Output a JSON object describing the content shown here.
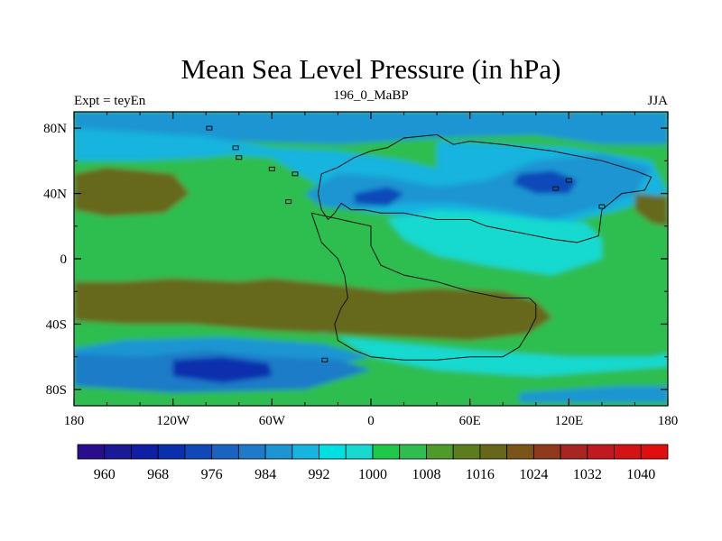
{
  "chart_data": {
    "type": "contour-map",
    "title": "Mean Sea Level Pressure (in hPa)",
    "subtitle_left": "Expt = teyEn",
    "subtitle_center": "196_0_MaBP",
    "subtitle_right": "JJA",
    "x_axis": {
      "range": [
        -180,
        180
      ],
      "ticks": [
        {
          "value": -180,
          "label": "180"
        },
        {
          "value": -120,
          "label": "120W"
        },
        {
          "value": -60,
          "label": "60W"
        },
        {
          "value": 0,
          "label": "0"
        },
        {
          "value": 60,
          "label": "60E"
        },
        {
          "value": 120,
          "label": "120E"
        },
        {
          "value": 180,
          "label": "180"
        }
      ]
    },
    "y_axis": {
      "range": [
        -90,
        90
      ],
      "ticks": [
        {
          "value": 80,
          "label": "80N"
        },
        {
          "value": 40,
          "label": "40N"
        },
        {
          "value": 0,
          "label": "0"
        },
        {
          "value": -40,
          "label": "40S"
        },
        {
          "value": -80,
          "label": "80S"
        }
      ]
    },
    "colorbar": {
      "levels": [
        960,
        964,
        968,
        972,
        976,
        980,
        984,
        988,
        992,
        996,
        1000,
        1004,
        1008,
        1012,
        1016,
        1020,
        1024,
        1028,
        1032,
        1036,
        1040
      ],
      "labeled_levels": [
        960,
        968,
        976,
        984,
        992,
        1000,
        1008,
        1016,
        1024,
        1032,
        1040
      ],
      "colors": [
        "#2a0d8c",
        "#1a1a96",
        "#0f1ea3",
        "#0a2fad",
        "#1148b8",
        "#1a64c0",
        "#1f7bc8",
        "#1d95d2",
        "#16b4de",
        "#00e0e0",
        "#18d9d0",
        "#20c84a",
        "#2fbd50",
        "#4e9a2a",
        "#5b7d1e",
        "#66671a",
        "#7a5418",
        "#8f3a1c",
        "#a82622",
        "#c01a20",
        "#d41414",
        "#e00e0e"
      ]
    },
    "fields": [
      {
        "name": "background-mid-latitudes",
        "band": "1004-1008"
      },
      {
        "name": "arctic-low",
        "band": "984-988"
      },
      {
        "name": "arctic-mid",
        "band": "988-996"
      },
      {
        "name": "eurasia-low",
        "band": "984-988"
      },
      {
        "name": "eurasia-min",
        "band": "972-976"
      },
      {
        "name": "asia-thermal-low",
        "band": "996-1000"
      },
      {
        "name": "pacific-high",
        "band": "1016-1020"
      },
      {
        "name": "southern-high-belt",
        "band": "1016-1020"
      },
      {
        "name": "southern-ocean-low",
        "band": "980-984"
      },
      {
        "name": "southern-ocean-min",
        "band": "968-972"
      }
    ]
  }
}
